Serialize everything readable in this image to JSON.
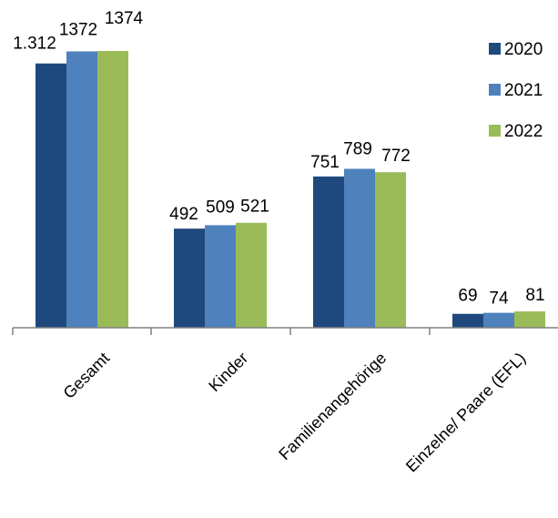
{
  "chart_data": {
    "type": "bar",
    "categories": [
      "Gesamt",
      "Kinder",
      "Familienangehörige",
      "Einzelne/ Paare (EFL)"
    ],
    "series": [
      {
        "name": "2020",
        "values": [
          1312,
          492,
          751,
          69
        ],
        "labels": [
          "1.312",
          "492",
          "751",
          "69"
        ],
        "color": "#1F497D"
      },
      {
        "name": "2021",
        "values": [
          1372,
          509,
          789,
          74
        ],
        "labels": [
          "1372",
          "509",
          "789",
          "74"
        ],
        "color": "#4F81BD"
      },
      {
        "name": "2022",
        "values": [
          1374,
          521,
          772,
          81
        ],
        "labels": [
          "1374",
          "521",
          "772",
          "81"
        ],
        "color": "#9BBB59"
      }
    ],
    "ylim": [
      0,
      1400
    ],
    "grid": false,
    "legend": "top-right",
    "axis_color": "#808080"
  }
}
